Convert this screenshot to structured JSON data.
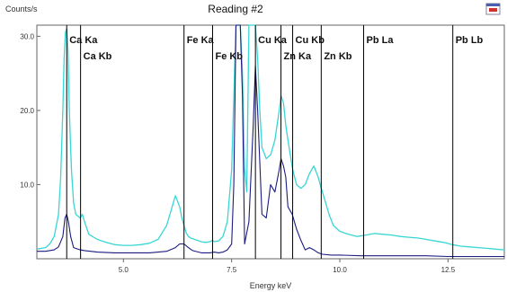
{
  "window": {
    "title": "Reading #2"
  },
  "chart_data": {
    "type": "line",
    "title": "Reading #2",
    "xlabel": "Energy keV",
    "ylabel": "Counts/s",
    "xlim": [
      3.0,
      13.8
    ],
    "ylim": [
      0,
      31.5
    ],
    "x_ticks": [
      5.0,
      7.5,
      10.0,
      12.5
    ],
    "x_tick_labels": [
      "5.0",
      "7.5",
      "10.0",
      "12.5"
    ],
    "y_ticks": [
      10,
      20,
      30
    ],
    "y_tick_labels": [
      "10.0",
      "20.0",
      "30.0"
    ],
    "grid": false,
    "legend": false,
    "colors": {
      "series_1": "#38d6d6",
      "series_2": "#1c1c80",
      "marker_line": "#000000",
      "frame": "#555555"
    },
    "markers": [
      {
        "label": "Ca Ka",
        "energy": 3.69,
        "row": 1
      },
      {
        "label": "Ca Kb",
        "energy": 4.01,
        "row": 2
      },
      {
        "label": "Fe Ka",
        "energy": 6.4,
        "row": 1
      },
      {
        "label": "Fe Kb",
        "energy": 7.06,
        "row": 2
      },
      {
        "label": "Cu Ka",
        "energy": 8.05,
        "row": 1
      },
      {
        "label": "Zn Ka",
        "energy": 8.64,
        "row": 2
      },
      {
        "label": "Cu Kb",
        "energy": 8.91,
        "row": 1
      },
      {
        "label": "Zn Kb",
        "energy": 9.57,
        "row": 2
      },
      {
        "label": "Pb La",
        "energy": 10.55,
        "row": 1
      },
      {
        "label": "Pb Lb",
        "energy": 12.61,
        "row": 1
      }
    ],
    "series": [
      {
        "x": [
          3.0,
          3.2,
          3.3,
          3.4,
          3.5,
          3.55,
          3.6,
          3.63,
          3.66,
          3.69,
          3.72,
          3.75,
          3.8,
          3.85,
          3.9,
          4.0,
          4.05,
          4.1,
          4.2,
          4.4,
          4.6,
          4.8,
          5.0,
          5.2,
          5.4,
          5.6,
          5.8,
          6.0,
          6.1,
          6.2,
          6.3,
          6.35,
          6.4,
          6.45,
          6.5,
          6.55,
          6.6,
          6.7,
          6.8,
          6.9,
          7.0,
          7.06,
          7.1,
          7.2,
          7.3,
          7.4,
          7.5,
          7.55,
          7.6,
          7.65,
          7.7,
          7.75,
          7.8,
          7.85,
          7.9,
          8.0,
          8.05,
          8.1,
          8.15,
          8.2,
          8.3,
          8.4,
          8.5,
          8.6,
          8.64,
          8.7,
          8.75,
          8.8,
          8.91,
          9.0,
          9.1,
          9.2,
          9.3,
          9.4,
          9.5,
          9.57,
          9.65,
          9.75,
          9.85,
          10.0,
          10.2,
          10.4,
          10.6,
          10.8,
          11.0,
          11.2,
          11.4,
          11.6,
          11.8,
          12.0,
          12.2,
          12.4,
          12.6,
          12.8,
          13.0,
          13.2,
          13.4,
          13.6,
          13.8
        ],
        "y": [
          1.3,
          1.5,
          2.0,
          3.0,
          6.0,
          11.0,
          20.0,
          27.0,
          30.5,
          31.0,
          28.0,
          20.0,
          12.0,
          7.5,
          6.0,
          5.5,
          6.0,
          5.0,
          3.3,
          2.6,
          2.2,
          1.9,
          1.8,
          1.8,
          1.9,
          2.1,
          2.6,
          4.5,
          6.5,
          8.5,
          7.0,
          5.5,
          4.5,
          3.5,
          3.0,
          2.8,
          2.7,
          2.5,
          2.3,
          2.2,
          2.3,
          2.5,
          2.3,
          2.4,
          3.0,
          5.0,
          12.0,
          22.0,
          31.5,
          31.5,
          31.5,
          25.0,
          12.0,
          9.0,
          31.5,
          31.5,
          31.5,
          27.0,
          20.0,
          15.0,
          13.5,
          14.0,
          16.0,
          20.0,
          22.0,
          21.0,
          18.0,
          16.0,
          12.0,
          10.0,
          9.5,
          10.0,
          11.5,
          12.5,
          11.0,
          9.5,
          8.0,
          6.0,
          4.5,
          3.7,
          3.3,
          3.0,
          3.2,
          3.4,
          3.3,
          3.2,
          3.0,
          2.9,
          2.8,
          2.6,
          2.4,
          2.2,
          1.9,
          1.7,
          1.6,
          1.5,
          1.4,
          1.3,
          1.2
        ]
      },
      {
        "x": [
          3.0,
          3.2,
          3.4,
          3.5,
          3.6,
          3.65,
          3.69,
          3.73,
          3.78,
          3.85,
          4.0,
          4.1,
          4.4,
          4.8,
          5.2,
          5.6,
          6.0,
          6.2,
          6.3,
          6.4,
          6.5,
          6.6,
          6.8,
          7.0,
          7.1,
          7.2,
          7.3,
          7.4,
          7.5,
          7.55,
          7.6,
          7.7,
          7.75,
          7.8,
          7.9,
          8.0,
          8.05,
          8.1,
          8.2,
          8.3,
          8.4,
          8.5,
          8.6,
          8.64,
          8.7,
          8.75,
          8.8,
          8.9,
          9.0,
          9.1,
          9.2,
          9.3,
          9.4,
          9.5,
          9.6,
          9.8,
          10.0,
          10.5,
          11.0,
          11.5,
          12.0,
          12.5,
          13.0,
          13.5,
          13.8
        ],
        "y": [
          1.0,
          1.0,
          1.2,
          1.6,
          3.0,
          5.5,
          6.0,
          5.0,
          3.0,
          1.5,
          1.2,
          1.1,
          0.9,
          0.8,
          0.8,
          0.8,
          1.0,
          1.5,
          2.0,
          2.0,
          1.5,
          1.1,
          0.8,
          0.8,
          0.9,
          0.8,
          0.9,
          1.2,
          2.0,
          10.0,
          31.5,
          31.5,
          22.0,
          2.0,
          5.0,
          18.0,
          26.0,
          20.0,
          6.0,
          5.5,
          10.0,
          9.0,
          12.0,
          13.5,
          12.5,
          11.0,
          7.0,
          6.0,
          4.0,
          2.5,
          1.2,
          1.5,
          1.2,
          0.8,
          0.6,
          0.5,
          0.5,
          0.4,
          0.4,
          0.4,
          0.4,
          0.3,
          0.3,
          0.3,
          0.3
        ]
      }
    ]
  }
}
